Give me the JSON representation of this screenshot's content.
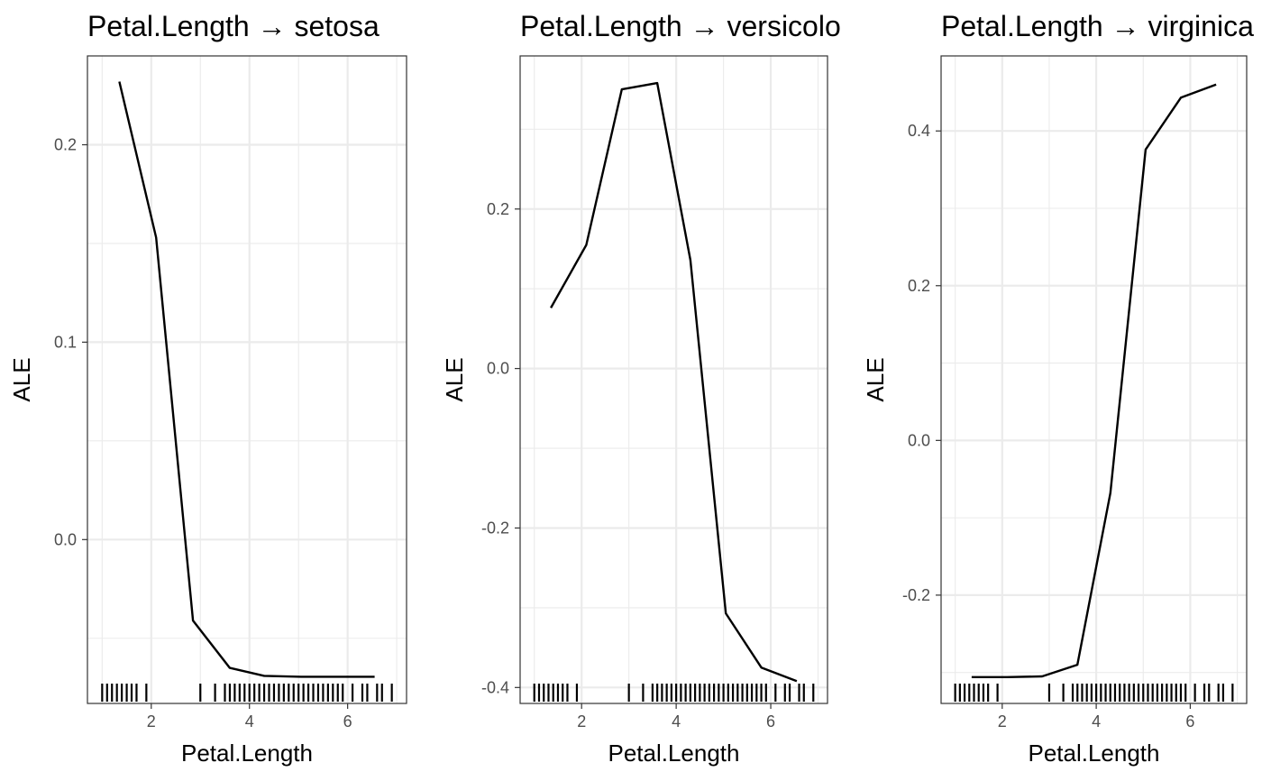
{
  "chart_data": [
    {
      "type": "line",
      "title": "Petal.Length → setosa",
      "xlabel": "Petal.Length",
      "ylabel": "ALE",
      "xlim": [
        0.7,
        7.2
      ],
      "ylim": [
        -0.083,
        0.245
      ],
      "x_ticks": [
        2,
        4,
        6
      ],
      "x_tick_labels": [
        "2",
        "4",
        "6"
      ],
      "y_ticks": [
        0.0,
        0.1,
        0.2
      ],
      "y_tick_labels": [
        "0.0",
        "0.1",
        "0.2"
      ],
      "grid": true,
      "series": [
        {
          "x": [
            1.35,
            2.1,
            2.85,
            3.6,
            4.3,
            5.05,
            5.8,
            6.55
          ],
          "values": [
            0.232,
            0.153,
            -0.041,
            -0.065,
            -0.069,
            -0.0695,
            -0.0695,
            -0.0695
          ]
        }
      ],
      "rug": [
        1.0,
        1.1,
        1.2,
        1.3,
        1.4,
        1.5,
        1.6,
        1.7,
        1.9,
        3.0,
        3.3,
        3.5,
        3.6,
        3.7,
        3.8,
        3.9,
        4.0,
        4.1,
        4.2,
        4.3,
        4.4,
        4.5,
        4.6,
        4.7,
        4.8,
        4.9,
        5.0,
        5.1,
        5.2,
        5.3,
        5.4,
        5.5,
        5.6,
        5.7,
        5.8,
        5.9,
        6.1,
        6.3,
        6.4,
        6.6,
        6.7,
        6.9
      ]
    },
    {
      "type": "line",
      "title": "Petal.Length → versicolor",
      "xlabel": "Petal.Length",
      "ylabel": "ALE",
      "xlim": [
        0.7,
        7.2
      ],
      "ylim": [
        -0.42,
        0.392
      ],
      "x_ticks": [
        2,
        4,
        6
      ],
      "x_tick_labels": [
        "2",
        "4",
        "6"
      ],
      "y_ticks": [
        -0.4,
        -0.2,
        0.0,
        0.2
      ],
      "y_tick_labels": [
        "-0.4",
        "-0.2",
        "0.0",
        "0.2"
      ],
      "grid": true,
      "series": [
        {
          "x": [
            1.35,
            2.1,
            2.85,
            3.6,
            4.3,
            5.05,
            5.8,
            6.55
          ],
          "values": [
            0.076,
            0.155,
            0.35,
            0.358,
            0.136,
            -0.307,
            -0.375,
            -0.392
          ]
        }
      ],
      "rug": [
        1.0,
        1.1,
        1.2,
        1.3,
        1.4,
        1.5,
        1.6,
        1.7,
        1.9,
        3.0,
        3.3,
        3.5,
        3.6,
        3.7,
        3.8,
        3.9,
        4.0,
        4.1,
        4.2,
        4.3,
        4.4,
        4.5,
        4.6,
        4.7,
        4.8,
        4.9,
        5.0,
        5.1,
        5.2,
        5.3,
        5.4,
        5.5,
        5.6,
        5.7,
        5.8,
        5.9,
        6.1,
        6.3,
        6.4,
        6.6,
        6.7,
        6.9
      ]
    },
    {
      "type": "line",
      "title": "Petal.Length → virginica",
      "xlabel": "Petal.Length",
      "ylabel": "ALE",
      "xlim": [
        0.7,
        7.2
      ],
      "ylim": [
        -0.34,
        0.497
      ],
      "x_ticks": [
        2,
        4,
        6
      ],
      "x_tick_labels": [
        "2",
        "4",
        "6"
      ],
      "y_ticks": [
        -0.2,
        0.0,
        0.2,
        0.4
      ],
      "y_tick_labels": [
        "-0.2",
        "0.0",
        "0.2",
        "0.4"
      ],
      "grid": true,
      "series": [
        {
          "x": [
            1.35,
            2.1,
            2.85,
            3.6,
            4.3,
            5.05,
            5.8,
            6.55
          ],
          "values": [
            -0.306,
            -0.306,
            -0.305,
            -0.29,
            -0.068,
            0.376,
            0.443,
            0.46
          ]
        }
      ],
      "rug": [
        1.0,
        1.1,
        1.2,
        1.3,
        1.4,
        1.5,
        1.6,
        1.7,
        1.9,
        3.0,
        3.3,
        3.5,
        3.6,
        3.7,
        3.8,
        3.9,
        4.0,
        4.1,
        4.2,
        4.3,
        4.4,
        4.5,
        4.6,
        4.7,
        4.8,
        4.9,
        5.0,
        5.1,
        5.2,
        5.3,
        5.4,
        5.5,
        5.6,
        5.7,
        5.8,
        5.9,
        6.1,
        6.3,
        6.4,
        6.6,
        6.7,
        6.9
      ]
    }
  ]
}
